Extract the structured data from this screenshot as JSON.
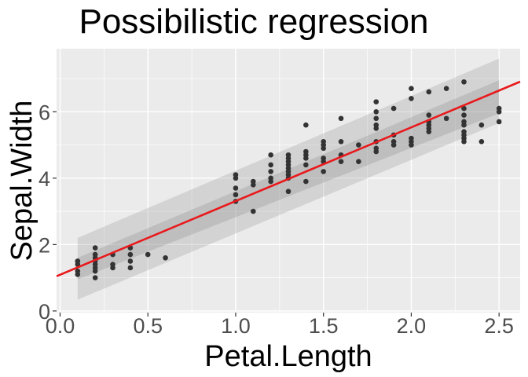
{
  "chart_data": {
    "type": "scatter",
    "title": "Possibilistic regression",
    "xlabel": "Petal.Length",
    "ylabel": "Sepal.Width",
    "xlim": [
      -0.02,
      2.62
    ],
    "ylim": [
      -0.05,
      7.9
    ],
    "xticks": [
      0.0,
      0.5,
      1.0,
      1.5,
      2.0,
      2.5
    ],
    "xtick_labels": [
      "0.0",
      "0.5",
      "1.0",
      "1.5",
      "2.0",
      "2.5"
    ],
    "yticks": [
      0,
      2,
      4,
      6
    ],
    "ytick_labels": [
      "0",
      "2",
      "4",
      "6"
    ],
    "grid": true,
    "background": "#ebebeb",
    "point_color": "#333333",
    "line_color": "#e8191c",
    "regression_line": {
      "intercept": 1.09,
      "slope": 2.22
    },
    "band_x_range": [
      0.1,
      2.5
    ],
    "outer_band": {
      "lower": [
        0.34,
        5.66
      ],
      "upper": [
        2.2,
        7.6
      ]
    },
    "inner_band": {
      "lower": [
        0.95,
        5.95
      ],
      "upper": [
        1.6,
        6.95
      ]
    },
    "points": [
      [
        0.1,
        1.1
      ],
      [
        0.1,
        1.4
      ],
      [
        0.1,
        1.5
      ],
      [
        0.1,
        1.5
      ],
      [
        0.1,
        1.2
      ],
      [
        0.2,
        1.0
      ],
      [
        0.2,
        1.2
      ],
      [
        0.2,
        1.3
      ],
      [
        0.2,
        1.4
      ],
      [
        0.2,
        1.5
      ],
      [
        0.2,
        1.6
      ],
      [
        0.2,
        1.7
      ],
      [
        0.2,
        1.9
      ],
      [
        0.3,
        1.3
      ],
      [
        0.3,
        1.4
      ],
      [
        0.3,
        1.7
      ],
      [
        0.4,
        1.3
      ],
      [
        0.4,
        1.5
      ],
      [
        0.4,
        1.7
      ],
      [
        0.4,
        1.9
      ],
      [
        0.5,
        1.7
      ],
      [
        0.6,
        1.6
      ],
      [
        1.0,
        3.3
      ],
      [
        1.0,
        3.5
      ],
      [
        1.0,
        3.7
      ],
      [
        1.0,
        4.0
      ],
      [
        1.0,
        4.1
      ],
      [
        1.1,
        3.0
      ],
      [
        1.1,
        3.8
      ],
      [
        1.1,
        3.9
      ],
      [
        1.2,
        3.9
      ],
      [
        1.2,
        4.0
      ],
      [
        1.2,
        4.2
      ],
      [
        1.2,
        4.4
      ],
      [
        1.2,
        4.7
      ],
      [
        1.3,
        3.6
      ],
      [
        1.3,
        4.0
      ],
      [
        1.3,
        4.1
      ],
      [
        1.3,
        4.2
      ],
      [
        1.3,
        4.3
      ],
      [
        1.3,
        4.4
      ],
      [
        1.3,
        4.5
      ],
      [
        1.3,
        4.6
      ],
      [
        1.3,
        4.7
      ],
      [
        1.4,
        3.9
      ],
      [
        1.4,
        4.4
      ],
      [
        1.4,
        4.6
      ],
      [
        1.4,
        4.7
      ],
      [
        1.4,
        4.8
      ],
      [
        1.4,
        5.6
      ],
      [
        1.5,
        4.2
      ],
      [
        1.5,
        4.5
      ],
      [
        1.5,
        4.6
      ],
      [
        1.5,
        4.9
      ],
      [
        1.5,
        5.0
      ],
      [
        1.5,
        5.1
      ],
      [
        1.6,
        4.5
      ],
      [
        1.6,
        4.7
      ],
      [
        1.6,
        5.1
      ],
      [
        1.6,
        5.8
      ],
      [
        1.7,
        4.5
      ],
      [
        1.7,
        5.0
      ],
      [
        1.8,
        4.8
      ],
      [
        1.8,
        4.9
      ],
      [
        1.8,
        5.1
      ],
      [
        1.8,
        5.5
      ],
      [
        1.8,
        5.6
      ],
      [
        1.8,
        5.8
      ],
      [
        1.8,
        6.0
      ],
      [
        1.8,
        6.3
      ],
      [
        1.9,
        5.0
      ],
      [
        1.9,
        5.1
      ],
      [
        1.9,
        5.3
      ],
      [
        1.9,
        6.1
      ],
      [
        2.0,
        5.0
      ],
      [
        2.0,
        5.1
      ],
      [
        2.0,
        5.2
      ],
      [
        2.0,
        6.4
      ],
      [
        2.0,
        6.7
      ],
      [
        2.1,
        5.4
      ],
      [
        2.1,
        5.5
      ],
      [
        2.1,
        5.6
      ],
      [
        2.1,
        5.7
      ],
      [
        2.1,
        5.9
      ],
      [
        2.1,
        6.6
      ],
      [
        2.2,
        5.8
      ],
      [
        2.2,
        6.7
      ],
      [
        2.3,
        5.1
      ],
      [
        2.3,
        5.2
      ],
      [
        2.3,
        5.3
      ],
      [
        2.3,
        5.4
      ],
      [
        2.3,
        5.6
      ],
      [
        2.3,
        5.7
      ],
      [
        2.3,
        5.9
      ],
      [
        2.3,
        6.1
      ],
      [
        2.3,
        6.9
      ],
      [
        2.4,
        5.1
      ],
      [
        2.4,
        5.6
      ],
      [
        2.5,
        5.7
      ],
      [
        2.5,
        6.0
      ],
      [
        2.5,
        6.1
      ]
    ]
  }
}
